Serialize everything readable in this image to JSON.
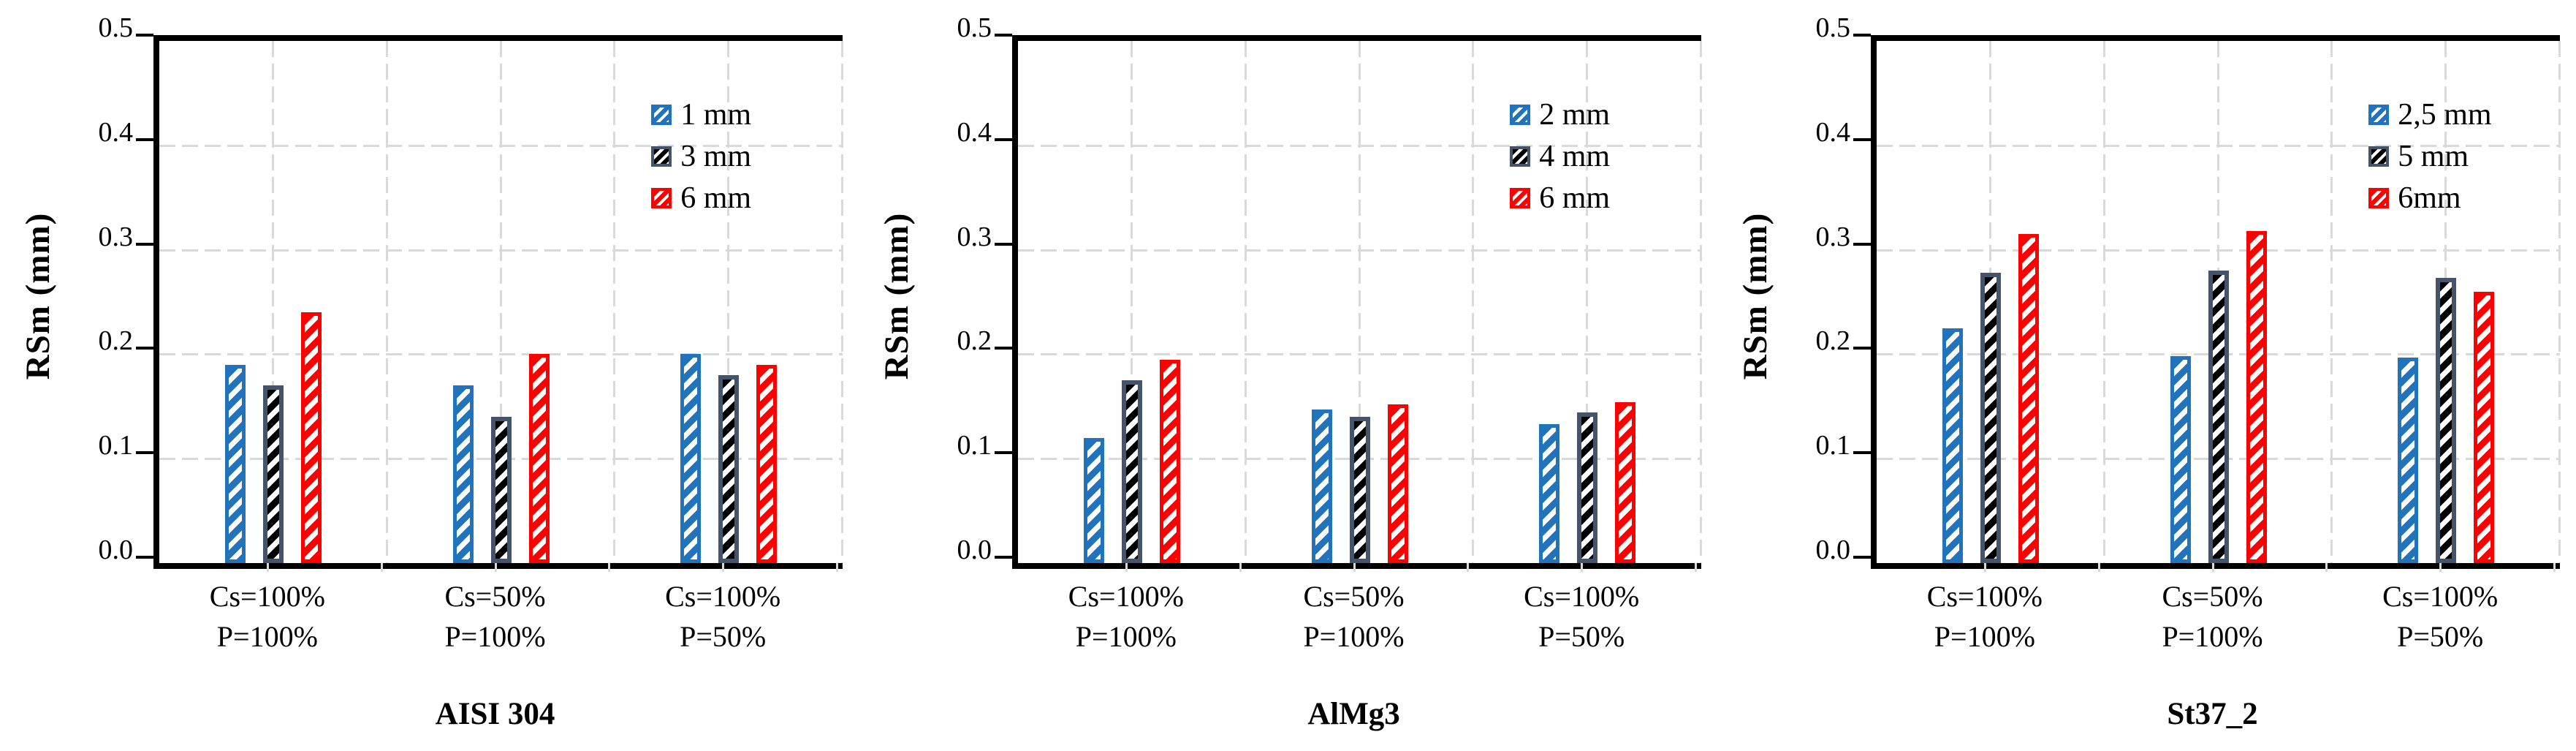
{
  "figure": {
    "background": "#FFFFFF",
    "y_tick_labels": [
      "0.5",
      "0.4",
      "0.3",
      "0.2",
      "0.1",
      "0.0"
    ],
    "colors": {
      "series_blue": "#2173BC",
      "series_black_hatch": "#000000",
      "series_black_border": "#44546A",
      "series_red": "#FF0000",
      "gridline": "#D9D9D9",
      "axis": "#000000"
    }
  },
  "chart_data": [
    {
      "type": "bar",
      "title": "AISI 304",
      "ylabel": "RSm (mm)",
      "ylim": [
        0,
        0.5
      ],
      "y_ticks": [
        0.5,
        0.4,
        0.3,
        0.2,
        0.1,
        0.0
      ],
      "grid": true,
      "legend_position": "upper-right-inside",
      "categories": [
        [
          "Cs=100%",
          "P=100%"
        ],
        [
          "Cs=50%",
          "P=100%"
        ],
        [
          "Cs=100%",
          "P=50%"
        ]
      ],
      "series": [
        {
          "name": "1 mm",
          "style": "blue",
          "color": "#2173BC",
          "values": [
            0.19,
            0.17,
            0.2
          ]
        },
        {
          "name": "3 mm",
          "style": "slate",
          "color": "#44546A",
          "values": [
            0.17,
            0.14,
            0.18
          ]
        },
        {
          "name": "6 mm",
          "style": "red",
          "color": "#FF0000",
          "values": [
            0.24,
            0.2,
            0.19
          ]
        }
      ]
    },
    {
      "type": "bar",
      "title": "AlMg3",
      "ylabel": "RSm (mm)",
      "ylim": [
        0,
        0.5
      ],
      "y_ticks": [
        0.5,
        0.4,
        0.3,
        0.2,
        0.1,
        0.0
      ],
      "grid": true,
      "legend_position": "upper-right-inside",
      "categories": [
        [
          "Cs=100%",
          "P=100%"
        ],
        [
          "Cs=50%",
          "P=100%"
        ],
        [
          "Cs=100%",
          "P=50%"
        ]
      ],
      "series": [
        {
          "name": "2 mm",
          "style": "blue",
          "color": "#2173BC",
          "values": [
            0.12,
            0.147,
            0.133
          ]
        },
        {
          "name": "4 mm",
          "style": "slate",
          "color": "#44546A",
          "values": [
            0.175,
            0.14,
            0.144
          ]
        },
        {
          "name": "6 mm",
          "style": "red",
          "color": "#FF0000",
          "values": [
            0.195,
            0.152,
            0.154
          ]
        }
      ]
    },
    {
      "type": "bar",
      "title": "St37_2",
      "ylabel": "RSm (mm)",
      "ylim": [
        0,
        0.5
      ],
      "y_ticks": [
        0.5,
        0.4,
        0.3,
        0.2,
        0.1,
        0.0
      ],
      "grid": true,
      "legend_position": "upper-right-inside",
      "categories": [
        [
          "Cs=100%",
          "P=100%"
        ],
        [
          "Cs=50%",
          "P=100%"
        ],
        [
          "Cs=100%",
          "P=50%"
        ]
      ],
      "series": [
        {
          "name": "2,5 mm",
          "style": "blue",
          "color": "#2173BC",
          "values": [
            0.225,
            0.198,
            0.197
          ]
        },
        {
          "name": "5 mm",
          "style": "slate",
          "color": "#44546A",
          "values": [
            0.278,
            0.28,
            0.273
          ]
        },
        {
          "name": "6mm",
          "style": "red",
          "color": "#FF0000",
          "values": [
            0.315,
            0.318,
            0.26
          ]
        }
      ]
    }
  ]
}
